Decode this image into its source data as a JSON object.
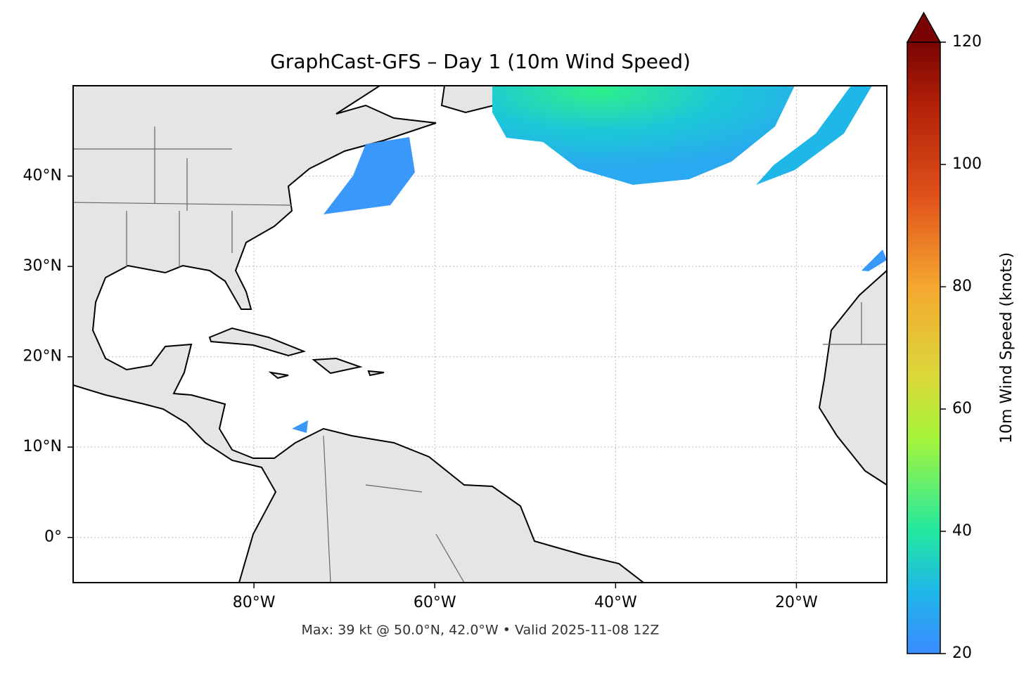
{
  "map": {
    "title": "GraphCast-GFS – Day 1 (10m Wind Speed)",
    "footer": "Max: 39 kt @ 50.0°N, 42.0°W • Valid 2025-11-08 12Z",
    "xlim": [
      -100,
      -10
    ],
    "ylim": [
      -5,
      50
    ],
    "xticks": [
      {
        "value": -80,
        "label": "80°W"
      },
      {
        "value": -60,
        "label": "60°W"
      },
      {
        "value": -40,
        "label": "40°W"
      },
      {
        "value": -20,
        "label": "20°W"
      }
    ],
    "yticks": [
      {
        "value": 0,
        "label": "0°"
      },
      {
        "value": 10,
        "label": "10°N"
      },
      {
        "value": 20,
        "label": "20°N"
      },
      {
        "value": 30,
        "label": "30°N"
      },
      {
        "value": 40,
        "label": "40°N"
      }
    ],
    "grid": true,
    "colorbar": {
      "label": "10m Wind Speed (knots)",
      "lim": [
        20,
        120
      ],
      "ticks": [
        20,
        40,
        60,
        80,
        100,
        120
      ]
    }
  }
}
